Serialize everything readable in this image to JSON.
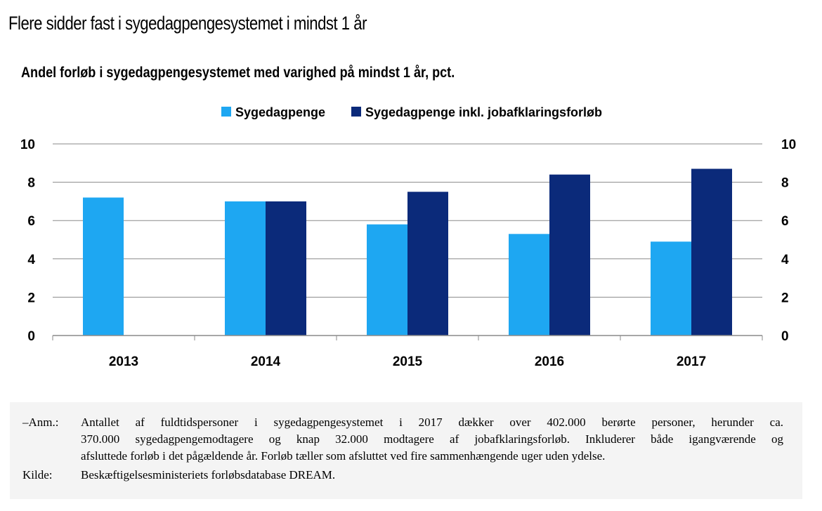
{
  "title": "Flere sidder fast i sygedagpengesystemet i mindst 1 år",
  "chart_data": {
    "type": "bar",
    "title": "Andel forløb i sygedagpengesystemet  med varighed på mindst 1 år, pct.",
    "categories": [
      "2013",
      "2014",
      "2015",
      "2016",
      "2017"
    ],
    "series": [
      {
        "name": "Sygedagpenge",
        "color": "#1ea7f2",
        "values": [
          7.2,
          7.0,
          5.8,
          5.3,
          4.9
        ]
      },
      {
        "name": "Sygedagpenge inkl. jobafklaringsforløb",
        "color": "#0b2a7a",
        "values": [
          null,
          7.0,
          7.5,
          8.4,
          8.7
        ]
      }
    ],
    "ylim": [
      0,
      10
    ],
    "yticks": [
      "0",
      "2",
      "4",
      "6",
      "8",
      "10"
    ],
    "y2ticks": [
      "0",
      "2",
      "4",
      "6",
      "8",
      "10"
    ],
    "xlabel": "",
    "ylabel": "",
    "grid": true,
    "legend_position": "top-center"
  },
  "notes": {
    "anm_label": "–Anm.:",
    "anm_lines": [
      "Antallet af fuldtidspersoner i sygedagpengesystemet i 2017 dækker over 402.000 berørte personer, herunder ca.",
      "370.000 sygedagpengemodtagere og knap 32.000 modtagere af jobafklaringsforløb. Inkluderer både igangværende og",
      "afsluttede forløb i det pågældende år.  Forløb tæller som afsluttet ved fire sammenhængende uger uden ydelse."
    ],
    "kilde_label": "Kilde:",
    "kilde_text": "Beskæftigelsesministeriets forløbsdatabase DREAM."
  }
}
